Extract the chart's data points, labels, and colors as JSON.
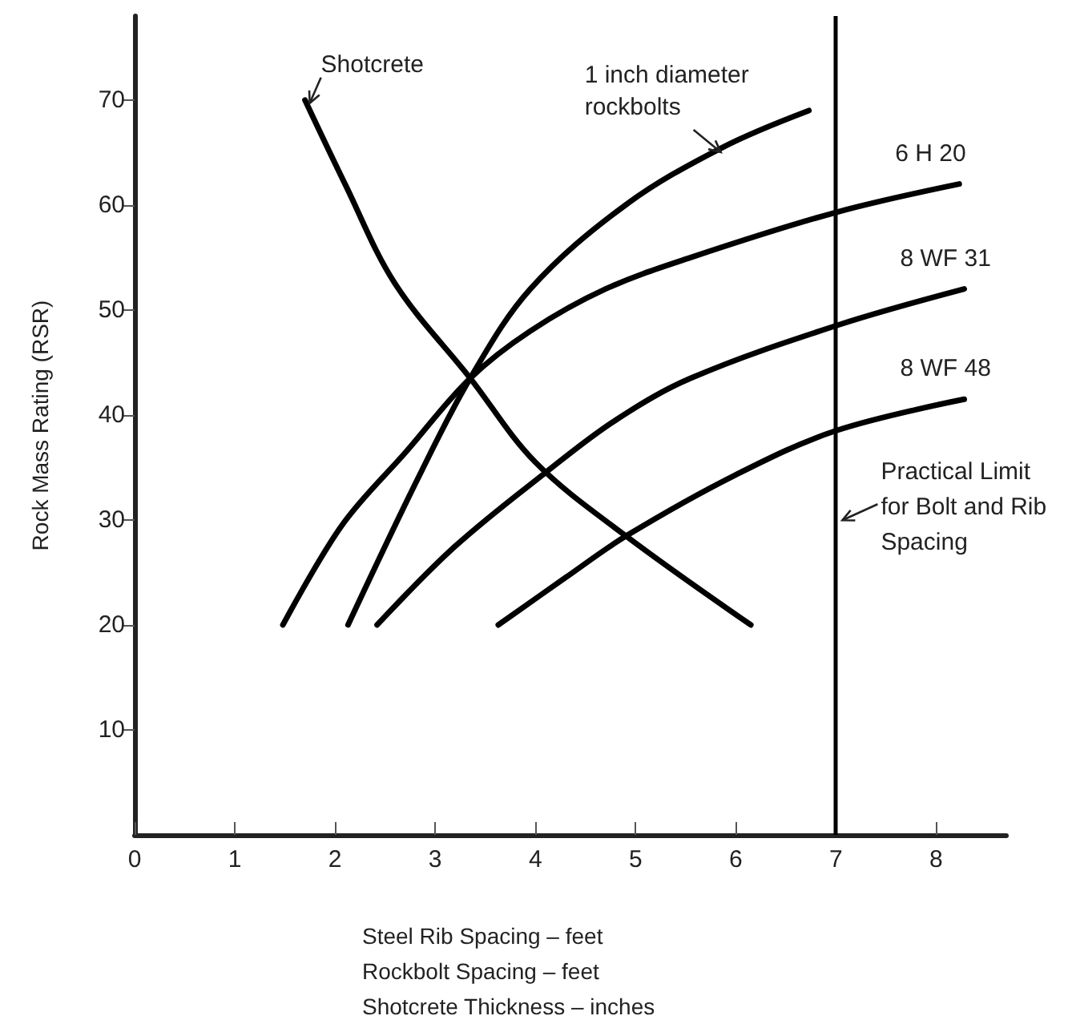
{
  "chart_data": {
    "type": "line",
    "xlabel": "Steel Rib Spacing – feet\nRockbolt Spacing – feet\nShotcrete Thickness – inches",
    "ylabel": "Rock Mass Rating (RSR)",
    "xlim": [
      0,
      8.7
    ],
    "xticks": [
      0,
      1,
      2,
      3,
      4,
      5,
      6,
      7,
      8
    ],
    "ylim": [
      0,
      78
    ],
    "yticks": [
      10,
      20,
      30,
      40,
      50,
      60,
      70
    ],
    "grid": false,
    "legend": false,
    "marker": "none",
    "line_style": "solid",
    "series": [
      {
        "name": "Shotcrete",
        "color": "#000000",
        "x": [
          1.7,
          2.1,
          2.6,
          3.35,
          4.0,
          4.9,
          6.15
        ],
        "values": [
          70,
          62,
          52.5,
          43.5,
          35.5,
          28.5,
          20
        ]
      },
      {
        "name": "1 inch diameter\nrockbolts",
        "color": "#000000",
        "x": [
          2.13,
          2.83,
          3.35,
          3.95,
          4.9,
          5.87,
          6.73
        ],
        "values": [
          20,
          34,
          43.5,
          52,
          60,
          65.5,
          69
        ]
      },
      {
        "name": "6 H 20",
        "color": "#000000",
        "x": [
          1.48,
          2.07,
          2.71,
          3.35,
          3.95,
          4.7,
          5.55,
          7.0,
          8.23
        ],
        "values": [
          20,
          29.5,
          36.5,
          43.5,
          48,
          52,
          55,
          59.3,
          62
        ]
      },
      {
        "name": "8 WF 31",
        "color": "#000000",
        "x": [
          2.42,
          3.2,
          4.1,
          4.8,
          5.55,
          7.0,
          8.28
        ],
        "values": [
          20,
          27.5,
          34.5,
          39.5,
          43.5,
          48.5,
          52
        ]
      },
      {
        "name": "8 WF 48",
        "color": "#000000",
        "x": [
          3.63,
          4.3,
          4.91,
          6.0,
          7.0,
          8.28
        ],
        "values": [
          20,
          24.5,
          28.5,
          34.3,
          38.5,
          41.5
        ]
      }
    ],
    "ref_lines": [
      {
        "axis": "x",
        "value": 7,
        "label": "Practical Limit\nfor Bolt and Rib\nSpacing",
        "color": "#000000",
        "line_style": "solid"
      }
    ]
  }
}
